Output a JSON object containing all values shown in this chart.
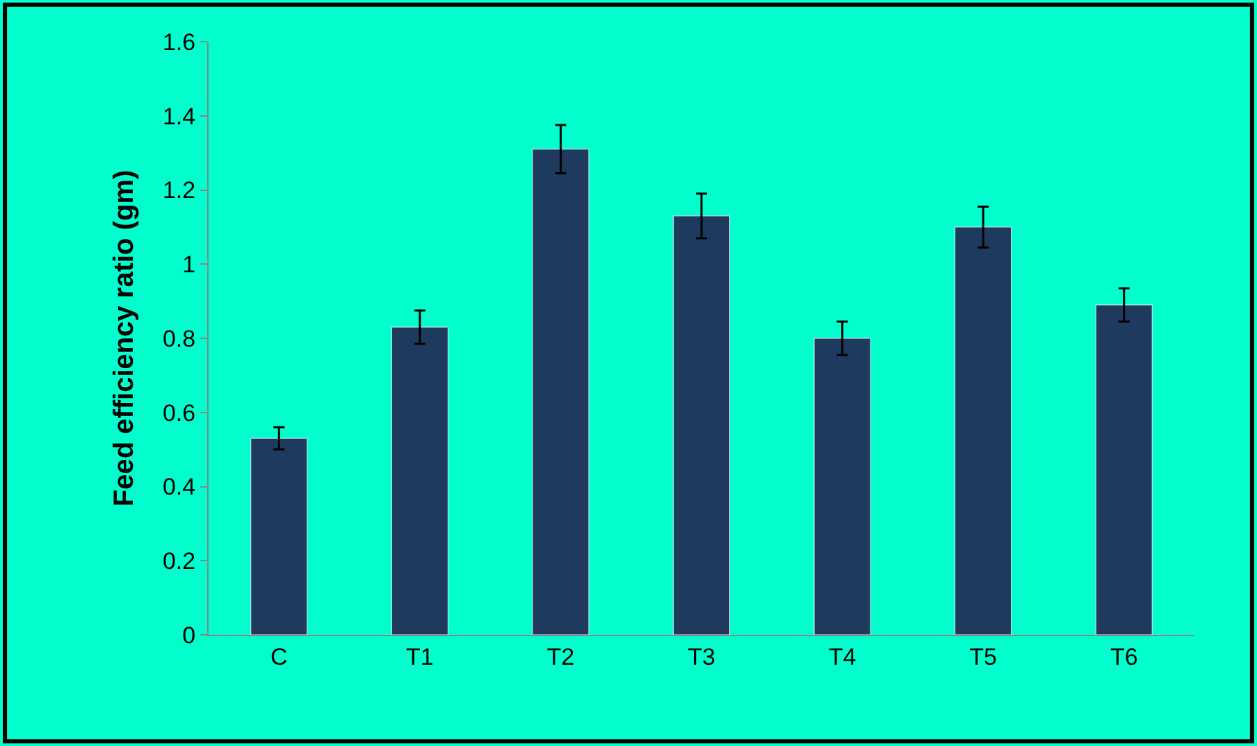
{
  "chart_data": {
    "type": "bar",
    "ylabel": "Feed efficiency ratio (gm)",
    "categories": [
      "C",
      "T1",
      "T2",
      "T3",
      "T4",
      "T5",
      "T6"
    ],
    "values": [
      0.53,
      0.83,
      1.31,
      1.13,
      0.8,
      1.1,
      0.89
    ],
    "errors": [
      0.03,
      0.045,
      0.065,
      0.06,
      0.045,
      0.055,
      0.045
    ],
    "color": "#1f3a5f",
    "ylim": [
      0,
      1.6
    ],
    "yticks": [
      0,
      0.2,
      0.4,
      0.6,
      0.8,
      1,
      1.2,
      1.4,
      1.6
    ],
    "grid": false
  }
}
